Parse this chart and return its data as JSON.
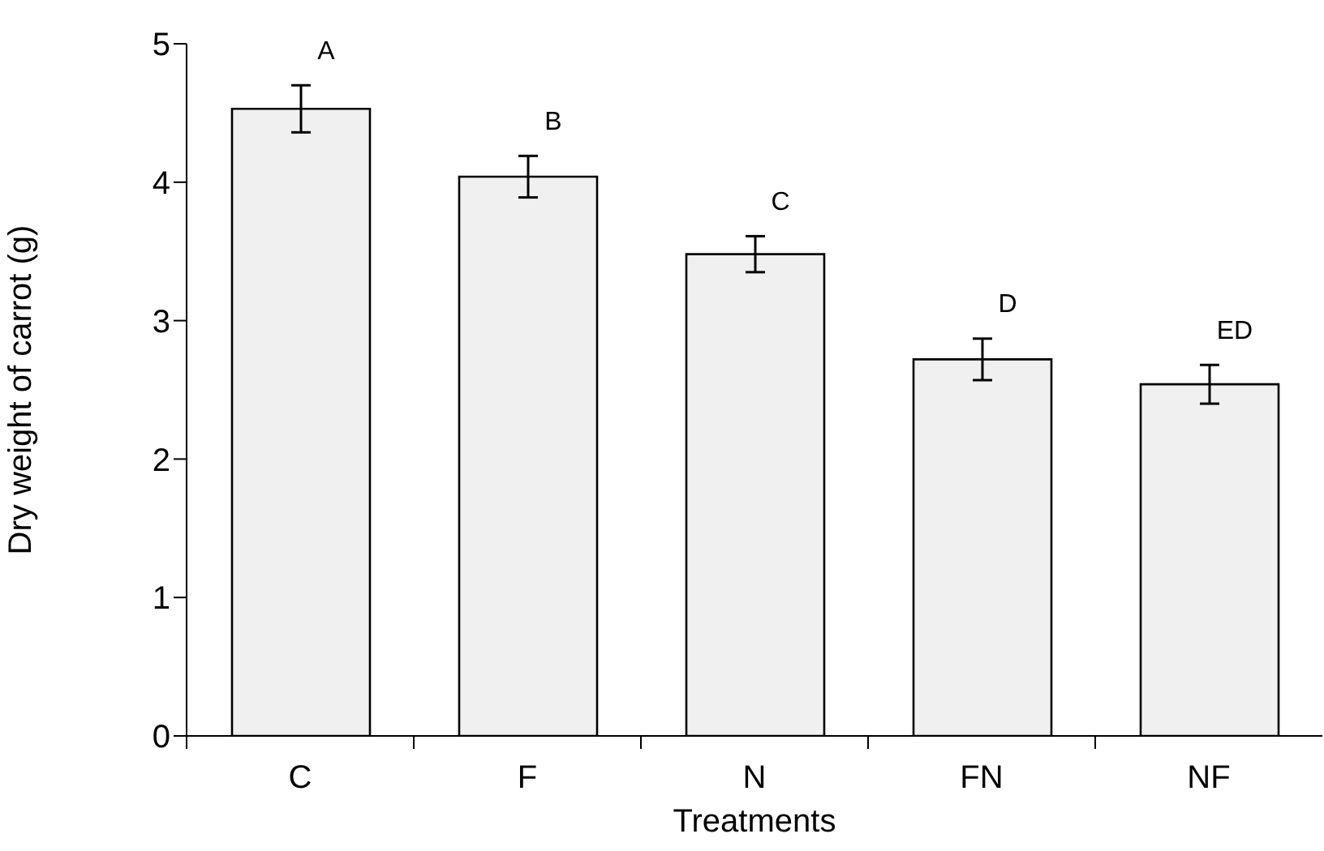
{
  "chart_data": {
    "type": "bar",
    "xlabel": "Treatments",
    "ylabel": "Dry weight of carrot (g)",
    "categories": [
      "C",
      "F",
      "N",
      "FN",
      "NF"
    ],
    "values": [
      4.53,
      4.04,
      3.48,
      2.72,
      2.54
    ],
    "errors": [
      0.17,
      0.15,
      0.13,
      0.15,
      0.14
    ],
    "color": "#f0f0f0",
    "ylim": [
      0,
      5
    ],
    "yticks": [
      0,
      1,
      2,
      3,
      4,
      5
    ],
    "annotations": [
      "A",
      "B",
      "C",
      "D",
      "ED"
    ]
  }
}
